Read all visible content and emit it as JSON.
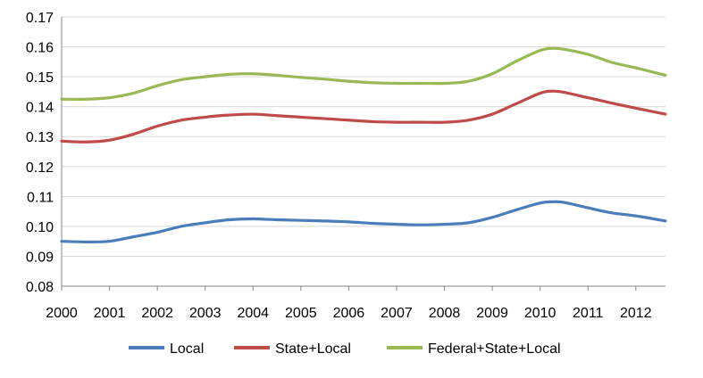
{
  "chart_data": {
    "type": "line",
    "title": "",
    "xlabel": "",
    "ylabel": "",
    "xlim": [
      2000,
      2012.62
    ],
    "ylim": [
      0.08,
      0.17
    ],
    "x_ticks": [
      "2000",
      "2001",
      "2002",
      "2003",
      "2004",
      "2005",
      "2006",
      "2007",
      "2008",
      "2009",
      "2010",
      "2011",
      "2012"
    ],
    "y_ticks": [
      "0.08",
      "0.09",
      "0.10",
      "0.11",
      "0.12",
      "0.13",
      "0.14",
      "0.15",
      "0.16",
      "0.17"
    ],
    "grid": "horizontal",
    "legend_position": "bottom",
    "x": [
      2000.0,
      2000.5,
      2001.0,
      2001.5,
      2002.0,
      2002.5,
      2003.0,
      2003.5,
      2004.0,
      2004.5,
      2005.0,
      2005.5,
      2006.0,
      2006.5,
      2007.0,
      2007.5,
      2008.0,
      2008.5,
      2009.0,
      2009.5,
      2010.0,
      2010.25,
      2010.5,
      2011.0,
      2011.5,
      2012.0,
      2012.62
    ],
    "series": [
      {
        "name": "Local",
        "color": "#4a7ebb",
        "values": [
          0.095,
          0.0948,
          0.095,
          0.0965,
          0.098,
          0.1,
          0.1012,
          0.1022,
          0.1025,
          0.1022,
          0.102,
          0.1018,
          0.1015,
          0.101,
          0.1007,
          0.1005,
          0.1007,
          0.1012,
          0.103,
          0.1055,
          0.1078,
          0.1082,
          0.108,
          0.1062,
          0.1045,
          0.1035,
          0.1018
        ]
      },
      {
        "name": "State+Local",
        "color": "#be4b48",
        "values": [
          0.1285,
          0.1282,
          0.1288,
          0.1308,
          0.1335,
          0.1355,
          0.1365,
          0.1372,
          0.1375,
          0.137,
          0.1365,
          0.136,
          0.1355,
          0.135,
          0.1348,
          0.1348,
          0.1348,
          0.1355,
          0.1375,
          0.141,
          0.1445,
          0.1452,
          0.1448,
          0.143,
          0.1412,
          0.1395,
          0.1375
        ]
      },
      {
        "name": "Federal+State+Local",
        "color": "#98b954",
        "values": [
          0.1425,
          0.1425,
          0.143,
          0.1445,
          0.147,
          0.149,
          0.15,
          0.1508,
          0.151,
          0.1505,
          0.1498,
          0.1492,
          0.1485,
          0.148,
          0.1478,
          0.1478,
          0.1478,
          0.1485,
          0.151,
          0.1552,
          0.1588,
          0.1595,
          0.1592,
          0.1575,
          0.1548,
          0.153,
          0.1505
        ]
      }
    ]
  }
}
